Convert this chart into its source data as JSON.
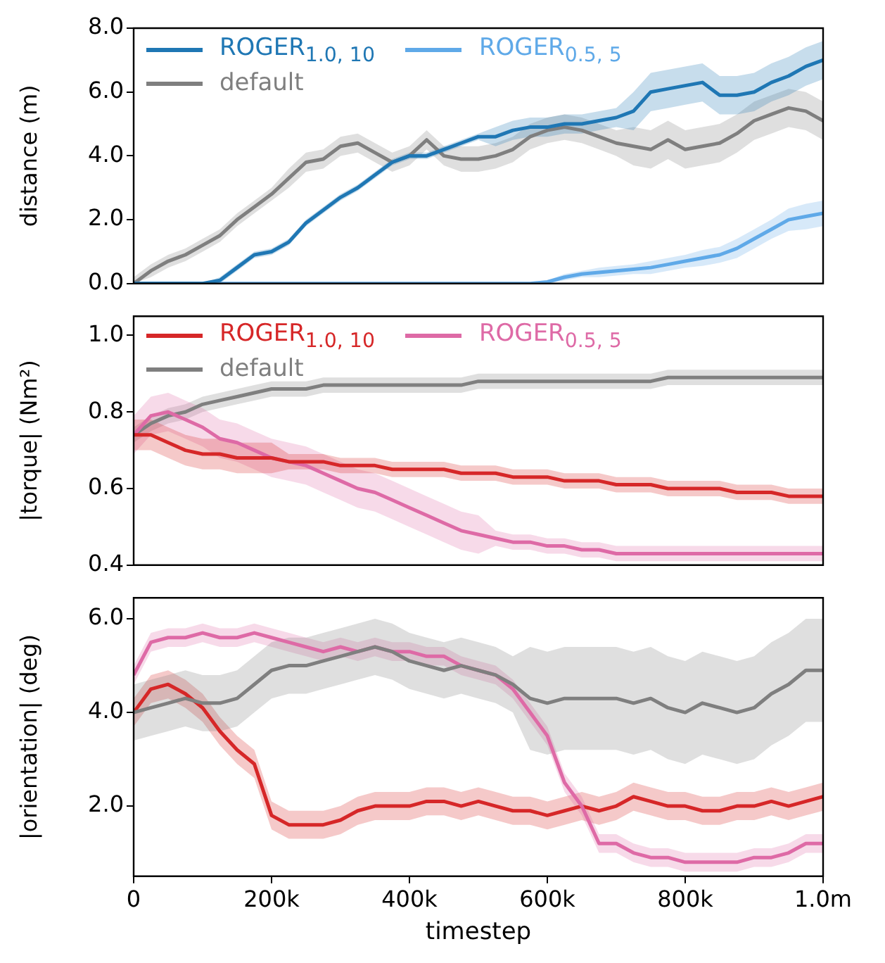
{
  "chart_data": [
    {
      "type": "line",
      "ylabel": "distance (m)",
      "legend": "top left",
      "tick_labels": "y",
      "x": [
        0,
        25000,
        50000,
        75000,
        100000,
        125000,
        150000,
        175000,
        200000,
        225000,
        250000,
        275000,
        300000,
        325000,
        350000,
        375000,
        400000,
        425000,
        450000,
        475000,
        500000,
        525000,
        550000,
        575000,
        600000,
        625000,
        650000,
        675000,
        700000,
        725000,
        750000,
        775000,
        800000,
        825000,
        850000,
        875000,
        900000,
        925000,
        950000,
        975000,
        1000000
      ],
      "xlim": [
        0,
        1000000
      ],
      "ylim": [
        0,
        8
      ],
      "yticks": [
        {
          "value": 0,
          "label": "0.0"
        },
        {
          "value": 2,
          "label": "2.0"
        },
        {
          "value": 4,
          "label": "4.0"
        },
        {
          "value": 6,
          "label": "6.0"
        },
        {
          "value": 8,
          "label": "8.0"
        }
      ],
      "series": [
        {
          "name": "ROGER$_{1.0, 10}$",
          "color": "#1f77b4",
          "values": [
            0,
            0,
            0,
            0,
            0,
            0.1,
            0.5,
            0.9,
            1.0,
            1.3,
            1.9,
            2.3,
            2.7,
            3.0,
            3.4,
            3.8,
            4.0,
            4.0,
            4.2,
            4.4,
            4.6,
            4.6,
            4.8,
            4.9,
            4.9,
            5.0,
            5.0,
            5.1,
            5.2,
            5.4,
            6.0,
            6.1,
            6.2,
            6.3,
            5.9,
            5.9,
            6.0,
            6.3,
            6.5,
            6.8,
            7.0
          ],
          "lower": [
            0,
            0,
            0,
            0,
            0,
            0,
            0.4,
            0.8,
            0.9,
            1.2,
            1.8,
            2.2,
            2.6,
            2.9,
            3.3,
            3.7,
            3.9,
            3.9,
            4.1,
            4.3,
            4.5,
            4.3,
            4.5,
            4.6,
            4.6,
            4.7,
            4.7,
            4.8,
            4.9,
            4.8,
            5.4,
            5.5,
            5.6,
            5.7,
            5.3,
            5.3,
            5.4,
            5.7,
            5.9,
            6.2,
            6.4
          ],
          "upper": [
            0,
            0,
            0,
            0,
            0,
            0.2,
            0.6,
            1.0,
            1.1,
            1.4,
            2.0,
            2.4,
            2.8,
            3.1,
            3.5,
            3.9,
            4.1,
            4.1,
            4.3,
            4.5,
            4.7,
            4.9,
            5.1,
            5.2,
            5.2,
            5.3,
            5.3,
            5.4,
            5.5,
            6.0,
            6.6,
            6.7,
            6.8,
            6.9,
            6.5,
            6.5,
            6.6,
            6.9,
            7.1,
            7.4,
            7.6
          ]
        },
        {
          "name": "ROGER$_{0.5, 5}$",
          "color": "#5fa9e8",
          "values": [
            0,
            0,
            0,
            0,
            0,
            0,
            0,
            0,
            0,
            0,
            0,
            0,
            0,
            0,
            0,
            0,
            0,
            0,
            0,
            0,
            0,
            0,
            0,
            0,
            0.05,
            0.2,
            0.3,
            0.35,
            0.4,
            0.45,
            0.5,
            0.6,
            0.7,
            0.8,
            0.9,
            1.1,
            1.4,
            1.7,
            2.0,
            2.1,
            2.2
          ],
          "lower": [
            0,
            0,
            0,
            0,
            0,
            0,
            0,
            0,
            0,
            0,
            0,
            0,
            0,
            0,
            0,
            0,
            0,
            0,
            0,
            0,
            0,
            0,
            0,
            0,
            0,
            0.1,
            0.2,
            0.2,
            0.25,
            0.3,
            0.3,
            0.4,
            0.5,
            0.55,
            0.65,
            0.8,
            1.1,
            1.4,
            1.65,
            1.7,
            1.8
          ],
          "upper": [
            0,
            0,
            0,
            0,
            0,
            0,
            0,
            0,
            0,
            0,
            0,
            0,
            0,
            0,
            0,
            0,
            0,
            0,
            0,
            0,
            0,
            0,
            0,
            0,
            0.1,
            0.3,
            0.4,
            0.5,
            0.55,
            0.6,
            0.7,
            0.8,
            0.9,
            1.05,
            1.15,
            1.4,
            1.7,
            2.0,
            2.35,
            2.5,
            2.6
          ]
        },
        {
          "name": "default",
          "color": "#7f7f7f",
          "values": [
            0,
            0.4,
            0.7,
            0.9,
            1.2,
            1.5,
            2.0,
            2.4,
            2.8,
            3.3,
            3.8,
            3.9,
            4.3,
            4.4,
            4.1,
            3.8,
            4.0,
            4.5,
            4.0,
            3.9,
            3.9,
            4.0,
            4.2,
            4.6,
            4.8,
            4.9,
            4.8,
            4.6,
            4.4,
            4.3,
            4.2,
            4.5,
            4.2,
            4.3,
            4.4,
            4.7,
            5.1,
            5.3,
            5.5,
            5.4,
            5.1
          ],
          "lower": [
            0,
            0.2,
            0.5,
            0.7,
            1.0,
            1.3,
            1.8,
            2.2,
            2.6,
            3.0,
            3.5,
            3.6,
            4.0,
            4.1,
            3.8,
            3.5,
            3.7,
            4.2,
            3.7,
            3.5,
            3.5,
            3.6,
            3.8,
            4.2,
            4.4,
            4.5,
            4.4,
            4.2,
            4.0,
            3.7,
            3.6,
            3.9,
            3.6,
            3.7,
            3.8,
            4.1,
            4.5,
            4.7,
            4.9,
            4.8,
            4.5
          ],
          "upper": [
            0.2,
            0.6,
            0.9,
            1.1,
            1.4,
            1.7,
            2.2,
            2.6,
            3.0,
            3.6,
            4.1,
            4.2,
            4.6,
            4.7,
            4.4,
            4.1,
            4.3,
            4.8,
            4.3,
            4.3,
            4.3,
            4.4,
            4.6,
            5.0,
            5.2,
            5.3,
            5.2,
            5.0,
            4.8,
            4.9,
            4.8,
            5.1,
            4.8,
            4.9,
            5.0,
            5.3,
            5.7,
            5.9,
            6.1,
            6.0,
            5.7
          ]
        }
      ]
    },
    {
      "type": "line",
      "ylabel": "|torque| (Nm²)",
      "legend": "top left",
      "tick_labels": "y",
      "x": [
        0,
        25000,
        50000,
        75000,
        100000,
        125000,
        150000,
        175000,
        200000,
        225000,
        250000,
        275000,
        300000,
        325000,
        350000,
        375000,
        400000,
        425000,
        450000,
        475000,
        500000,
        525000,
        550000,
        575000,
        600000,
        625000,
        650000,
        675000,
        700000,
        725000,
        750000,
        775000,
        800000,
        825000,
        850000,
        875000,
        900000,
        925000,
        950000,
        975000,
        1000000
      ],
      "xlim": [
        0,
        1000000
      ],
      "ylim": [
        0.4,
        1.05
      ],
      "yticks": [
        0.4,
        0.6,
        0.8,
        {
          "value": 1,
          "label": "1.0"
        }
      ],
      "series": [
        {
          "name": "ROGER$_{1.0, 10}$",
          "color": "#d62728",
          "values": [
            0.74,
            0.74,
            0.72,
            0.7,
            0.69,
            0.69,
            0.68,
            0.68,
            0.68,
            0.67,
            0.67,
            0.67,
            0.66,
            0.66,
            0.66,
            0.65,
            0.65,
            0.65,
            0.65,
            0.64,
            0.64,
            0.64,
            0.63,
            0.63,
            0.63,
            0.62,
            0.62,
            0.62,
            0.61,
            0.61,
            0.61,
            0.6,
            0.6,
            0.6,
            0.6,
            0.59,
            0.59,
            0.59,
            0.58,
            0.58,
            0.58
          ],
          "lower": [
            0.7,
            0.7,
            0.68,
            0.66,
            0.65,
            0.65,
            0.64,
            0.64,
            0.64,
            0.65,
            0.65,
            0.65,
            0.64,
            0.64,
            0.64,
            0.63,
            0.63,
            0.63,
            0.63,
            0.62,
            0.62,
            0.62,
            0.61,
            0.61,
            0.61,
            0.6,
            0.6,
            0.6,
            0.59,
            0.59,
            0.59,
            0.58,
            0.58,
            0.58,
            0.58,
            0.57,
            0.57,
            0.57,
            0.56,
            0.56,
            0.56
          ],
          "upper": [
            0.78,
            0.78,
            0.76,
            0.74,
            0.73,
            0.73,
            0.72,
            0.72,
            0.72,
            0.69,
            0.69,
            0.69,
            0.68,
            0.68,
            0.68,
            0.67,
            0.67,
            0.67,
            0.67,
            0.66,
            0.66,
            0.66,
            0.65,
            0.65,
            0.65,
            0.64,
            0.64,
            0.64,
            0.63,
            0.63,
            0.63,
            0.62,
            0.62,
            0.62,
            0.62,
            0.61,
            0.61,
            0.61,
            0.6,
            0.6,
            0.6
          ]
        },
        {
          "name": "ROGER$_{0.5, 5}$",
          "color": "#de6aa6",
          "values": [
            0.74,
            0.79,
            0.8,
            0.78,
            0.76,
            0.73,
            0.72,
            0.7,
            0.68,
            0.67,
            0.66,
            0.64,
            0.62,
            0.6,
            0.59,
            0.57,
            0.55,
            0.53,
            0.51,
            0.49,
            0.48,
            0.47,
            0.46,
            0.46,
            0.45,
            0.45,
            0.44,
            0.44,
            0.43,
            0.43,
            0.43,
            0.43,
            0.43,
            0.43,
            0.43,
            0.43,
            0.43,
            0.43,
            0.43,
            0.43,
            0.43
          ],
          "lower": [
            0.69,
            0.74,
            0.75,
            0.73,
            0.71,
            0.68,
            0.67,
            0.65,
            0.63,
            0.62,
            0.61,
            0.59,
            0.57,
            0.55,
            0.54,
            0.52,
            0.5,
            0.48,
            0.46,
            0.44,
            0.43,
            0.45,
            0.44,
            0.44,
            0.43,
            0.43,
            0.42,
            0.42,
            0.41,
            0.41,
            0.41,
            0.41,
            0.41,
            0.41,
            0.41,
            0.41,
            0.41,
            0.41,
            0.41,
            0.41,
            0.41
          ],
          "upper": [
            0.79,
            0.84,
            0.85,
            0.83,
            0.81,
            0.78,
            0.77,
            0.75,
            0.73,
            0.72,
            0.71,
            0.69,
            0.67,
            0.65,
            0.64,
            0.62,
            0.6,
            0.58,
            0.56,
            0.54,
            0.53,
            0.49,
            0.48,
            0.48,
            0.47,
            0.47,
            0.46,
            0.46,
            0.45,
            0.45,
            0.45,
            0.45,
            0.45,
            0.45,
            0.45,
            0.45,
            0.45,
            0.45,
            0.45,
            0.45,
            0.45
          ]
        },
        {
          "name": "default",
          "color": "#7f7f7f",
          "values": [
            0.74,
            0.77,
            0.79,
            0.8,
            0.82,
            0.83,
            0.84,
            0.85,
            0.86,
            0.86,
            0.86,
            0.87,
            0.87,
            0.87,
            0.87,
            0.87,
            0.87,
            0.87,
            0.87,
            0.87,
            0.88,
            0.88,
            0.88,
            0.88,
            0.88,
            0.88,
            0.88,
            0.88,
            0.88,
            0.88,
            0.88,
            0.89,
            0.89,
            0.89,
            0.89,
            0.89,
            0.89,
            0.89,
            0.89,
            0.89,
            0.89
          ],
          "lower": [
            0.72,
            0.75,
            0.77,
            0.78,
            0.8,
            0.81,
            0.82,
            0.83,
            0.84,
            0.84,
            0.84,
            0.85,
            0.85,
            0.85,
            0.85,
            0.85,
            0.85,
            0.85,
            0.85,
            0.85,
            0.86,
            0.86,
            0.86,
            0.86,
            0.86,
            0.86,
            0.86,
            0.86,
            0.86,
            0.86,
            0.86,
            0.87,
            0.87,
            0.87,
            0.87,
            0.87,
            0.87,
            0.87,
            0.87,
            0.87,
            0.87
          ],
          "upper": [
            0.76,
            0.79,
            0.81,
            0.82,
            0.84,
            0.85,
            0.86,
            0.87,
            0.88,
            0.88,
            0.88,
            0.89,
            0.89,
            0.89,
            0.89,
            0.89,
            0.89,
            0.89,
            0.89,
            0.89,
            0.9,
            0.9,
            0.9,
            0.9,
            0.9,
            0.9,
            0.9,
            0.9,
            0.9,
            0.9,
            0.9,
            0.91,
            0.91,
            0.91,
            0.91,
            0.91,
            0.91,
            0.91,
            0.91,
            0.91,
            0.91
          ]
        }
      ]
    },
    {
      "type": "line",
      "ylabel": "|orientation| (deg)",
      "xlabel": "timestep",
      "x": [
        0,
        25000,
        50000,
        75000,
        100000,
        125000,
        150000,
        175000,
        200000,
        225000,
        250000,
        275000,
        300000,
        325000,
        350000,
        375000,
        400000,
        425000,
        450000,
        475000,
        500000,
        525000,
        550000,
        575000,
        600000,
        625000,
        650000,
        675000,
        700000,
        725000,
        750000,
        775000,
        800000,
        825000,
        850000,
        875000,
        900000,
        925000,
        950000,
        975000,
        1000000
      ],
      "xlim": [
        0,
        1000000
      ],
      "xticks": [
        0,
        {
          "value": 200000,
          "label": "200k"
        },
        {
          "value": 400000,
          "label": "400k"
        },
        {
          "value": 600000,
          "label": "600k"
        },
        {
          "value": 800000,
          "label": "800k"
        },
        {
          "value": 1000000,
          "label": "1.0m"
        }
      ],
      "ylim": [
        0.5,
        6.45
      ],
      "yticks": [
        {
          "value": 2,
          "label": "2.0"
        },
        {
          "value": 4,
          "label": "4.0"
        },
        {
          "value": 6,
          "label": "6.0"
        }
      ],
      "series": [
        {
          "color": "#7f7f7f",
          "values": [
            4.0,
            4.1,
            4.2,
            4.3,
            4.2,
            4.2,
            4.3,
            4.6,
            4.9,
            5.0,
            5.0,
            5.1,
            5.2,
            5.3,
            5.4,
            5.3,
            5.1,
            5.0,
            4.9,
            5.0,
            4.9,
            4.8,
            4.6,
            4.3,
            4.2,
            4.3,
            4.3,
            4.3,
            4.3,
            4.2,
            4.3,
            4.1,
            4.0,
            4.2,
            4.1,
            4.0,
            4.1,
            4.4,
            4.6,
            4.9,
            4.9
          ],
          "lower": [
            3.4,
            3.5,
            3.6,
            3.7,
            3.6,
            3.6,
            3.7,
            4.0,
            4.3,
            4.4,
            4.4,
            4.5,
            4.6,
            4.7,
            4.8,
            4.7,
            4.5,
            4.4,
            4.3,
            4.4,
            4.3,
            4.2,
            4.0,
            3.2,
            3.1,
            3.2,
            3.2,
            3.2,
            3.2,
            3.1,
            3.2,
            3.0,
            2.9,
            3.1,
            3.0,
            2.9,
            3.0,
            3.3,
            3.5,
            3.8,
            3.8
          ],
          "upper": [
            4.6,
            4.7,
            4.8,
            4.9,
            4.8,
            4.8,
            4.9,
            5.2,
            5.5,
            5.6,
            5.6,
            5.7,
            5.8,
            5.9,
            6.0,
            5.9,
            5.7,
            5.6,
            5.5,
            5.6,
            5.5,
            5.4,
            5.2,
            5.4,
            5.3,
            5.4,
            5.4,
            5.4,
            5.4,
            5.3,
            5.4,
            5.2,
            5.1,
            5.3,
            5.2,
            5.1,
            5.2,
            5.5,
            5.7,
            6.0,
            6.0
          ]
        },
        {
          "color": "#de6aa6",
          "values": [
            4.8,
            5.5,
            5.6,
            5.6,
            5.7,
            5.6,
            5.6,
            5.7,
            5.6,
            5.5,
            5.4,
            5.3,
            5.4,
            5.3,
            5.4,
            5.3,
            5.3,
            5.2,
            5.2,
            5.0,
            4.9,
            4.8,
            4.5,
            4.0,
            3.5,
            2.5,
            2.0,
            1.2,
            1.2,
            1.0,
            0.9,
            0.9,
            0.8,
            0.8,
            0.8,
            0.8,
            0.9,
            0.9,
            1.0,
            1.2,
            1.2
          ],
          "lower": [
            4.6,
            5.3,
            5.4,
            5.4,
            5.5,
            5.4,
            5.4,
            5.5,
            5.4,
            5.3,
            5.2,
            5.1,
            5.2,
            5.1,
            5.2,
            5.1,
            5.1,
            5.0,
            5.0,
            4.8,
            4.7,
            4.6,
            4.3,
            3.8,
            3.3,
            2.3,
            1.8,
            1.0,
            1.0,
            0.8,
            0.7,
            0.7,
            0.6,
            0.6,
            0.6,
            0.6,
            0.7,
            0.7,
            0.8,
            1.0,
            1.0
          ],
          "upper": [
            5.0,
            5.7,
            5.8,
            5.8,
            5.9,
            5.8,
            5.8,
            5.9,
            5.8,
            5.7,
            5.6,
            5.5,
            5.6,
            5.5,
            5.6,
            5.5,
            5.5,
            5.4,
            5.4,
            5.2,
            5.1,
            5.0,
            4.7,
            4.2,
            3.7,
            2.7,
            2.2,
            1.4,
            1.4,
            1.2,
            1.1,
            1.1,
            1.0,
            1.0,
            1.0,
            1.0,
            1.1,
            1.1,
            1.2,
            1.4,
            1.4
          ]
        },
        {
          "color": "#d62728",
          "values": [
            4.0,
            4.5,
            4.6,
            4.4,
            4.1,
            3.6,
            3.2,
            2.9,
            1.8,
            1.6,
            1.6,
            1.6,
            1.7,
            1.9,
            2.0,
            2.0,
            2.0,
            2.1,
            2.1,
            2.0,
            2.1,
            2.0,
            1.9,
            1.9,
            1.8,
            1.9,
            2.0,
            1.9,
            2.0,
            2.2,
            2.1,
            2.0,
            2.0,
            1.9,
            1.9,
            2.0,
            2.0,
            2.1,
            2.0,
            2.1,
            2.2
          ],
          "lower": [
            3.7,
            4.2,
            4.3,
            4.1,
            3.8,
            3.3,
            2.9,
            2.6,
            1.5,
            1.3,
            1.3,
            1.3,
            1.4,
            1.6,
            1.7,
            1.7,
            1.7,
            1.8,
            1.8,
            1.7,
            1.8,
            1.7,
            1.6,
            1.6,
            1.5,
            1.6,
            1.7,
            1.6,
            1.7,
            1.9,
            1.8,
            1.7,
            1.7,
            1.6,
            1.6,
            1.7,
            1.7,
            1.8,
            1.7,
            1.8,
            1.9
          ],
          "upper": [
            4.3,
            4.8,
            4.9,
            4.7,
            4.4,
            3.9,
            3.5,
            3.2,
            2.1,
            1.9,
            1.9,
            1.9,
            2.0,
            2.2,
            2.3,
            2.3,
            2.3,
            2.4,
            2.4,
            2.3,
            2.4,
            2.3,
            2.2,
            2.2,
            2.1,
            2.2,
            2.3,
            2.2,
            2.3,
            2.5,
            2.4,
            2.3,
            2.3,
            2.2,
            2.2,
            2.3,
            2.3,
            2.4,
            2.3,
            2.4,
            2.5
          ]
        }
      ]
    }
  ]
}
